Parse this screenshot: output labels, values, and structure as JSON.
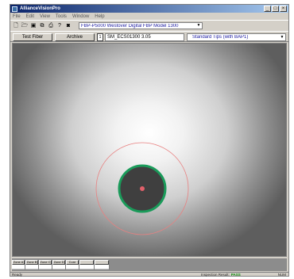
{
  "window": {
    "title": "AllianceVisionPro",
    "controls": [
      "_",
      "□",
      "×"
    ]
  },
  "menu": [
    "File",
    "Edit",
    "View",
    "Tools",
    "Window",
    "Help"
  ],
  "toolbar": {
    "icons": [
      "new-file-icon",
      "open-folder-icon",
      "save-icon",
      "copy-icon",
      "print-icon",
      "help-icon",
      "camera-icon"
    ],
    "device": "FBP-P5000 Westover Digital FBP Model 1300"
  },
  "controls": {
    "test_fiber_label": "Test Fiber",
    "archive_label": "Archive",
    "spin_value": "1",
    "fiber_name": "SM_ECS01300 3.05",
    "tip_profile": "Standard Tips (with BAP1)"
  },
  "zones": {
    "headers": [
      "Zone A",
      "Zone B",
      "Zone C",
      "Zone D",
      "Core",
      "",
      ""
    ]
  },
  "status": {
    "left": "Ready",
    "result_label": "Inspection Result:",
    "result_value": "PASS",
    "right": "NUM"
  },
  "colors": {
    "ring": "#1a9b5a",
    "core": "#e0606a",
    "cladding_boundary": "#e88080"
  }
}
